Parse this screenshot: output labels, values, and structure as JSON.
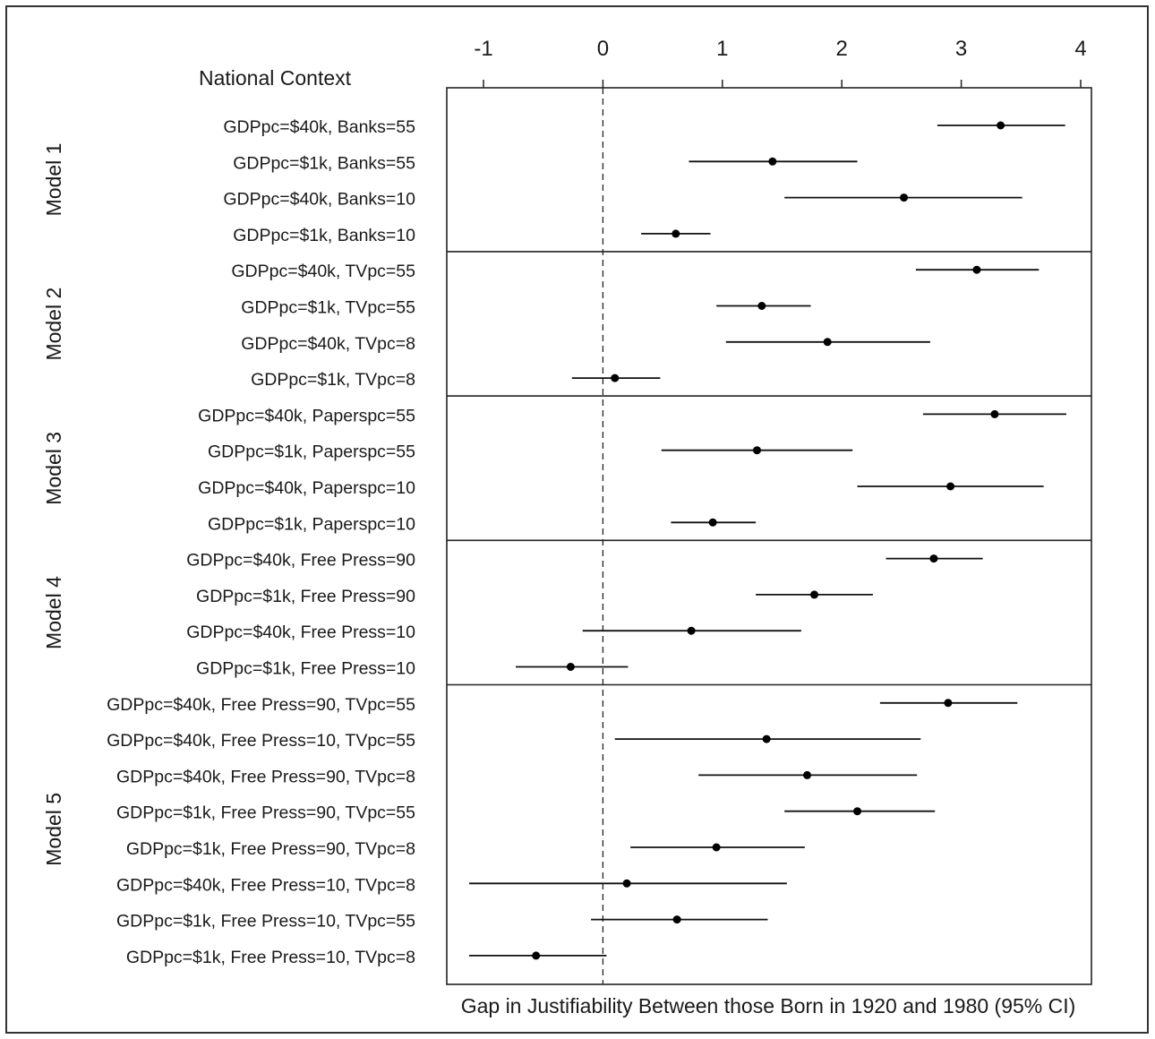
{
  "chart_data": {
    "type": "forest",
    "title": "",
    "left_header": "National Context",
    "xlabel": "Gap in Justifiability Between those Born in 1920 and 1980 (95% CI)",
    "ylabel": "",
    "xlim": [
      -1.25,
      4.1
    ],
    "xticks": [
      -1,
      0,
      1,
      2,
      3,
      4
    ],
    "xtick_labels": [
      "-1",
      "0",
      "1",
      "2",
      "3",
      "4"
    ],
    "x_axis_position": "top",
    "reference_line": 0,
    "grid": false,
    "groups": [
      {
        "name": "Model 1",
        "rows": [
          {
            "label": "GDPpc=$40k, Banks=55",
            "estimate": 3.33,
            "lower": 2.8,
            "upper": 3.87
          },
          {
            "label": "GDPpc=$1k, Banks=55",
            "estimate": 1.42,
            "lower": 0.72,
            "upper": 2.13
          },
          {
            "label": "GDPpc=$40k, Banks=10",
            "estimate": 2.52,
            "lower": 1.52,
            "upper": 3.51
          },
          {
            "label": "GDPpc=$1k, Banks=10",
            "estimate": 0.61,
            "lower": 0.32,
            "upper": 0.9
          }
        ]
      },
      {
        "name": "Model 2",
        "rows": [
          {
            "label": "GDPpc=$40k, TVpc=55",
            "estimate": 3.13,
            "lower": 2.62,
            "upper": 3.65
          },
          {
            "label": "GDPpc=$1k, TVpc=55",
            "estimate": 1.33,
            "lower": 0.95,
            "upper": 1.74
          },
          {
            "label": "GDPpc=$40k, TVpc=8",
            "estimate": 1.88,
            "lower": 1.03,
            "upper": 2.74
          },
          {
            "label": "GDPpc=$1k, TVpc=8",
            "estimate": 0.1,
            "lower": -0.26,
            "upper": 0.48
          }
        ]
      },
      {
        "name": "Model 3",
        "rows": [
          {
            "label": "GDPpc=$40k, Paperspc=55",
            "estimate": 3.28,
            "lower": 2.68,
            "upper": 3.88
          },
          {
            "label": "GDPpc=$1k, Paperspc=55",
            "estimate": 1.29,
            "lower": 0.49,
            "upper": 2.09
          },
          {
            "label": "GDPpc=$40k, Paperspc=10",
            "estimate": 2.91,
            "lower": 2.13,
            "upper": 3.69
          },
          {
            "label": "GDPpc=$1k, Paperspc=10",
            "estimate": 0.92,
            "lower": 0.57,
            "upper": 1.28
          }
        ]
      },
      {
        "name": "Model 4",
        "rows": [
          {
            "label": "GDPpc=$40k, Free Press=90",
            "estimate": 2.77,
            "lower": 2.37,
            "upper": 3.18
          },
          {
            "label": "GDPpc=$1k, Free Press=90",
            "estimate": 1.77,
            "lower": 1.28,
            "upper": 2.26
          },
          {
            "label": "GDPpc=$40k, Free Press=10",
            "estimate": 0.74,
            "lower": -0.17,
            "upper": 1.66
          },
          {
            "label": "GDPpc=$1k, Free Press=10",
            "estimate": -0.27,
            "lower": -0.73,
            "upper": 0.21
          }
        ]
      },
      {
        "name": "Model 5",
        "rows": [
          {
            "label": "GDPpc=$40k, Free Press=90, TVpc=55",
            "estimate": 2.89,
            "lower": 2.32,
            "upper": 3.47
          },
          {
            "label": "GDPpc=$40k, Free Press=10, TVpc=55",
            "estimate": 1.37,
            "lower": 0.1,
            "upper": 2.66
          },
          {
            "label": "GDPpc=$40k, Free Press=90, TVpc=8",
            "estimate": 1.71,
            "lower": 0.8,
            "upper": 2.63
          },
          {
            "label": "GDPpc=$1k, Free Press=90, TVpc=55",
            "estimate": 2.13,
            "lower": 1.52,
            "upper": 2.78
          },
          {
            "label": "GDPpc=$1k, Free Press=90, TVpc=8",
            "estimate": 0.95,
            "lower": 0.23,
            "upper": 1.69
          },
          {
            "label": "GDPpc=$40k, Free Press=10, TVpc=8",
            "estimate": 0.2,
            "lower": -1.12,
            "upper": 1.54
          },
          {
            "label": "GDPpc=$1k, Free Press=10, TVpc=55",
            "estimate": 0.62,
            "lower": -0.1,
            "upper": 1.38
          },
          {
            "label": "GDPpc=$1k, Free Press=10, TVpc=8",
            "estimate": -0.56,
            "lower": -1.12,
            "upper": 0.03
          }
        ]
      }
    ]
  }
}
